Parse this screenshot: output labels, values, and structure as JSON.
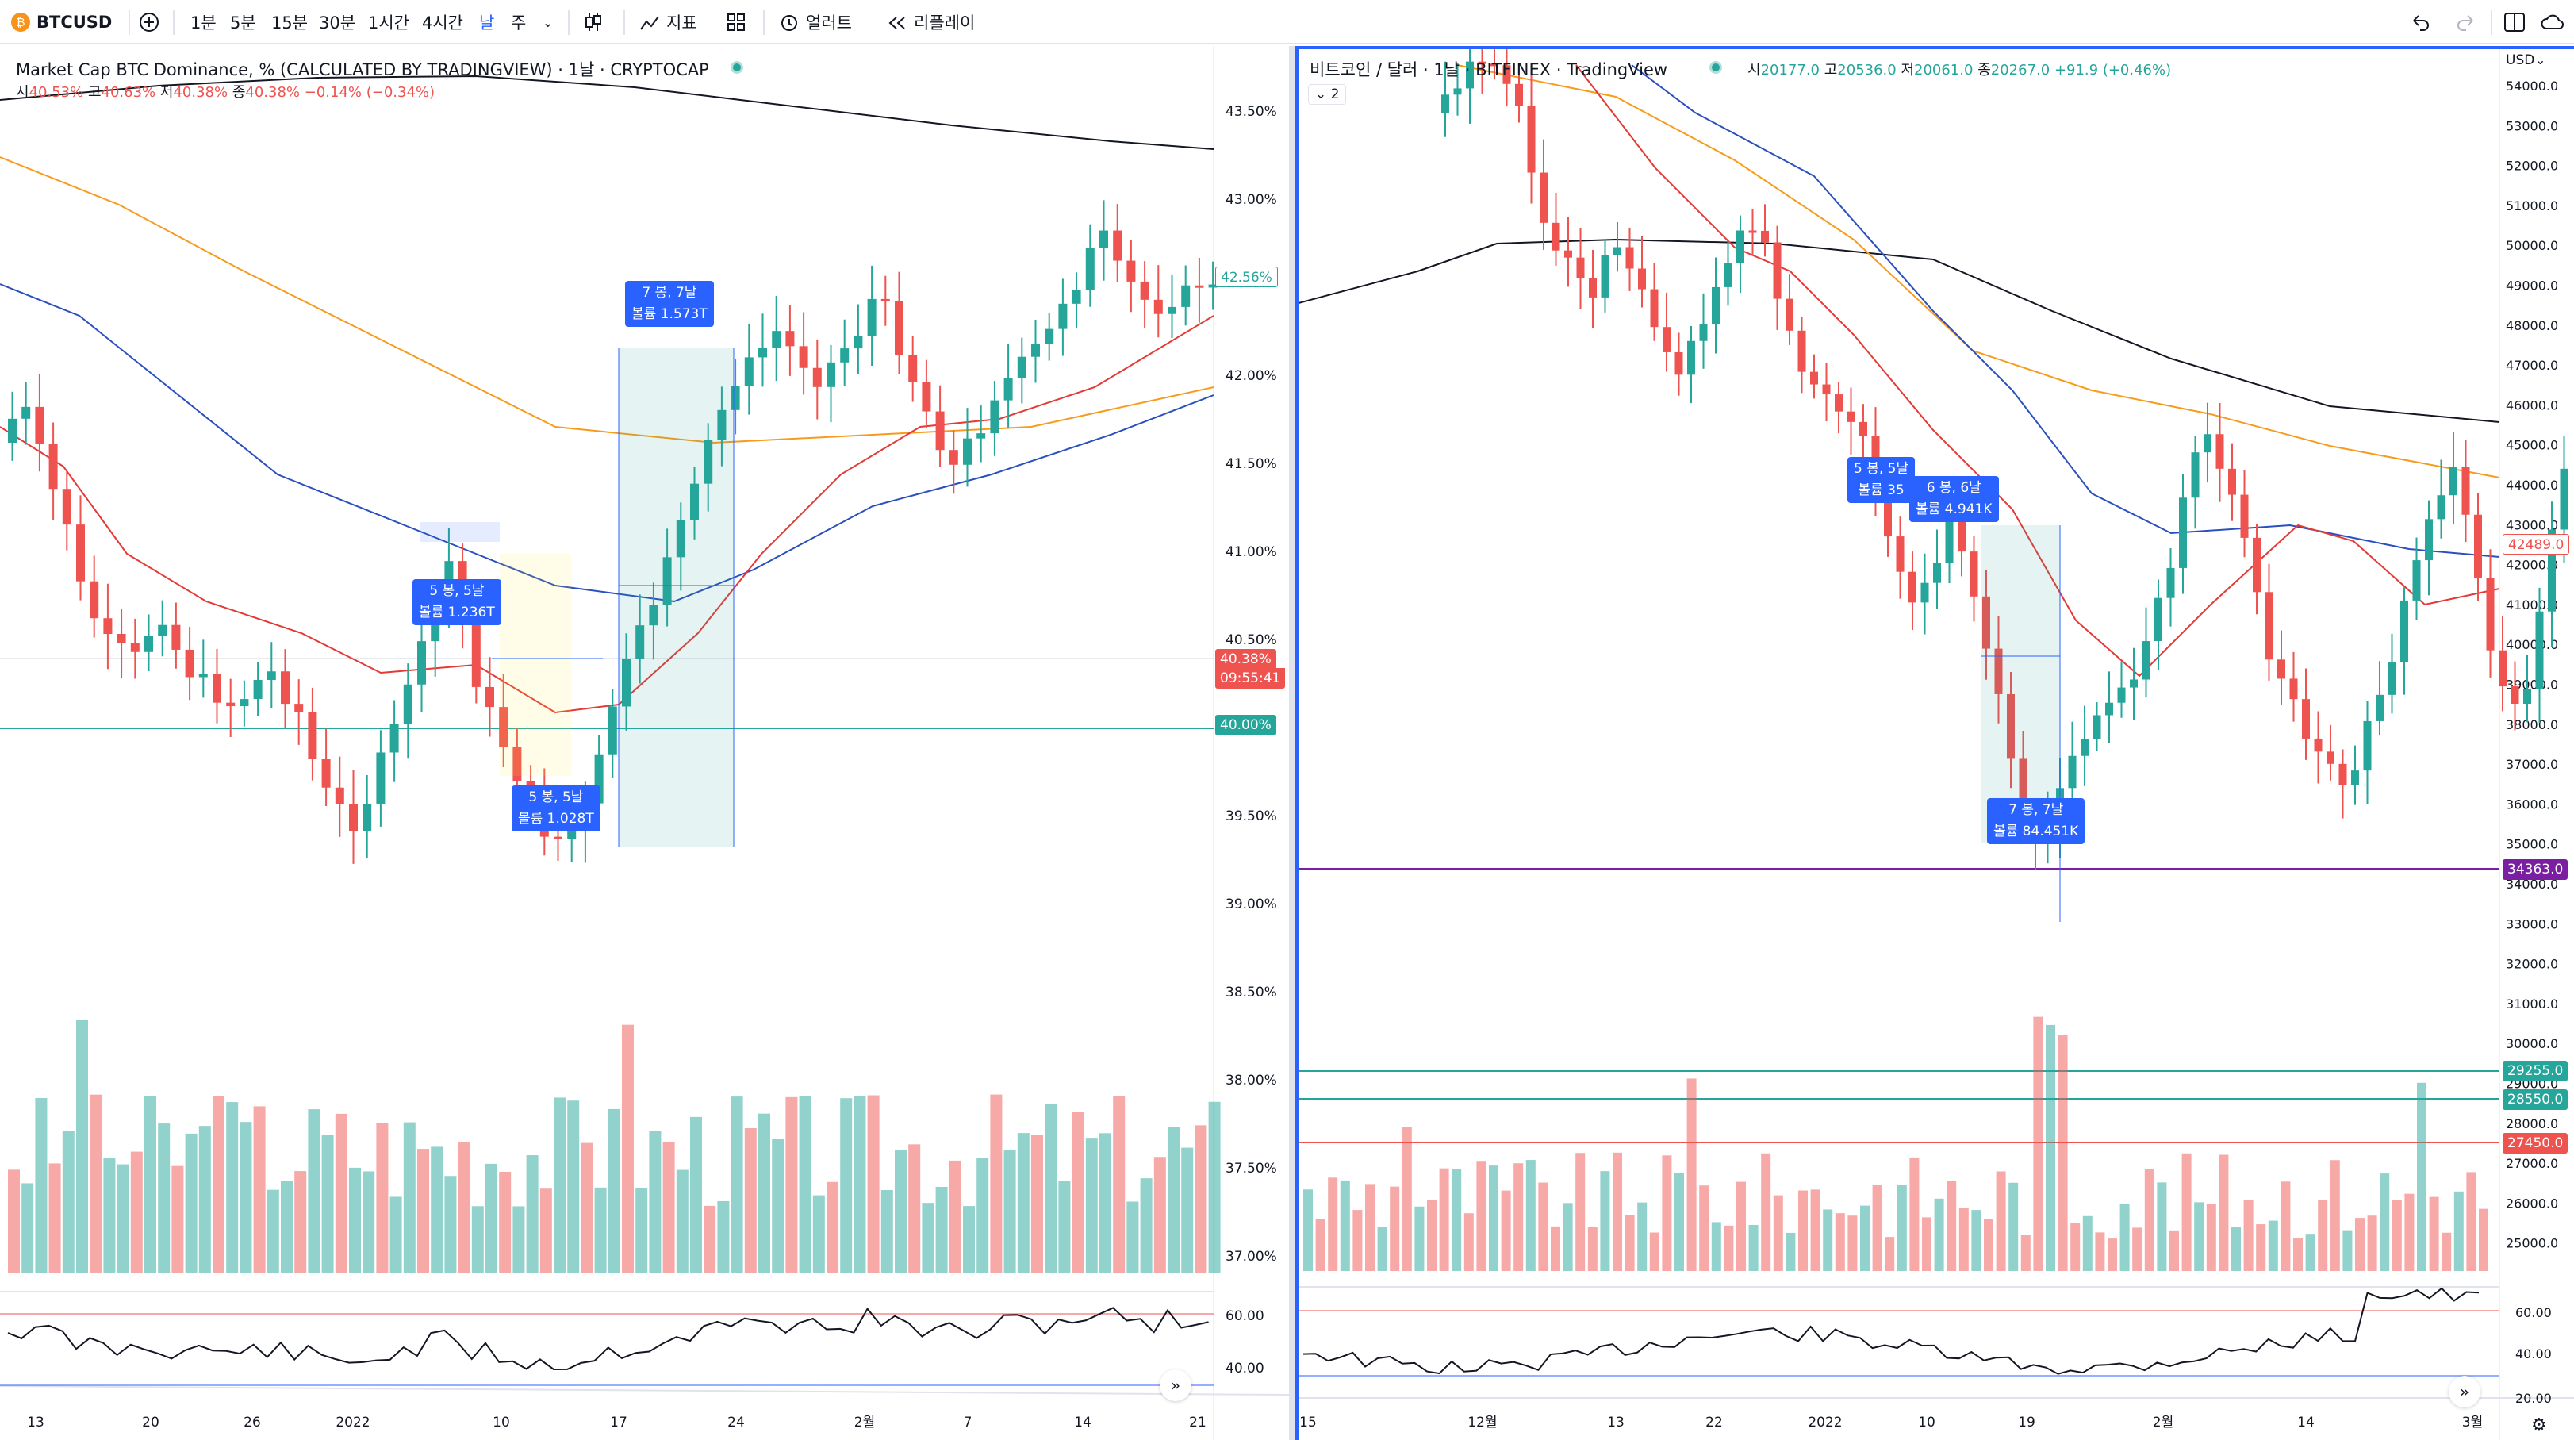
{
  "toolbar": {
    "symbol": "BTCUSD",
    "intervals": [
      "1분",
      "5분",
      "15분",
      "30분",
      "1시간",
      "4시간",
      "날",
      "주"
    ],
    "active_interval": "날",
    "indicators_label": "지표",
    "alert_label": "얼러트",
    "replay_label": "리플레이"
  },
  "left": {
    "title": "Market Cap BTC Dominance, % (CALCULATED BY TRADINGVIEW) · 1날 · CRYPTOCAP",
    "ohlc": {
      "o_label": "시",
      "o": "40.53%",
      "h_label": "고",
      "h": "40.63%",
      "l_label": "저",
      "l": "40.38%",
      "c_label": "종",
      "c": "40.38%",
      "chg": "−0.14% (−0.34%)"
    },
    "price_labels": [
      "43.50%",
      "43.00%",
      "42.50%",
      "42.00%",
      "41.50%",
      "41.00%",
      "40.50%",
      "40.00%",
      "39.50%",
      "39.00%",
      "38.50%",
      "38.00%",
      "37.50%",
      "37.00%"
    ],
    "current_price": "40.38%",
    "countdown": "09:55:41",
    "hline_label": "40.00%",
    "alt_price": "42.56%",
    "rsi_labels": [
      "60.00",
      "40.00"
    ],
    "date_labels": [
      "13",
      "20",
      "26",
      "2022",
      "10",
      "17",
      "24",
      "2월",
      "7",
      "14",
      "21"
    ],
    "measures": [
      {
        "line1": "5 봉, 5날",
        "line2": "볼륨 1.236T"
      },
      {
        "line1": "5 봉, 5날",
        "line2": "볼륨 1.028T"
      },
      {
        "line1": "7 봉, 7날",
        "line2": "볼륨 1.573T"
      }
    ]
  },
  "right": {
    "title": "비트코인 / 달러 · 1날 · BITFINEX · TradingView",
    "ohlc": {
      "o_label": "시",
      "o": "20177.0",
      "h_label": "고",
      "h": "20536.0",
      "l_label": "저",
      "l": "20061.0",
      "c_label": "종",
      "c": "20267.0",
      "chg": "+91.9 (+0.46%)"
    },
    "collapsed_count": "2",
    "currency": "USD",
    "price_labels": [
      "54000.0",
      "53000.0",
      "52000.0",
      "51000.0",
      "50000.0",
      "49000.0",
      "48000.0",
      "47000.0",
      "46000.0",
      "45000.0",
      "44000.0",
      "43000.0",
      "42000.0",
      "41000.0",
      "40000.0",
      "39000.0",
      "38000.0",
      "37000.0",
      "36000.0",
      "35000.0",
      "34000.0",
      "33000.0",
      "32000.0",
      "31000.0",
      "30000.0",
      "29000.0",
      "28000.0",
      "27000.0",
      "26000.0",
      "25000.0"
    ],
    "current_price": "42489.0",
    "hline_purple": "34363.0",
    "hline_green1": "29255.0",
    "hline_green2": "28550.0",
    "hline_red": "27450.0",
    "rsi_labels": [
      "60.00",
      "40.00",
      "20.00"
    ],
    "date_labels": [
      "15",
      "12월",
      "13",
      "22",
      "2022",
      "10",
      "19",
      "2월",
      "14",
      "3월"
    ],
    "measures": [
      {
        "line1": "5 봉, 5날",
        "line2": "볼륨 35"
      },
      {
        "line1": "6 봉, 6날",
        "line2": "볼륨 4.941K"
      },
      {
        "line1": "7 봉, 7날",
        "line2": "볼륨 84.451K"
      }
    ]
  },
  "colors": {
    "up": "#26a69a",
    "down": "#ef5350",
    "ma_black": "#131722",
    "ma_orange": "#f89b1c",
    "ma_blue": "#2a4fbf",
    "ma_red": "#e53935",
    "accent": "#2962ff",
    "purple": "#7b1fa2"
  }
}
